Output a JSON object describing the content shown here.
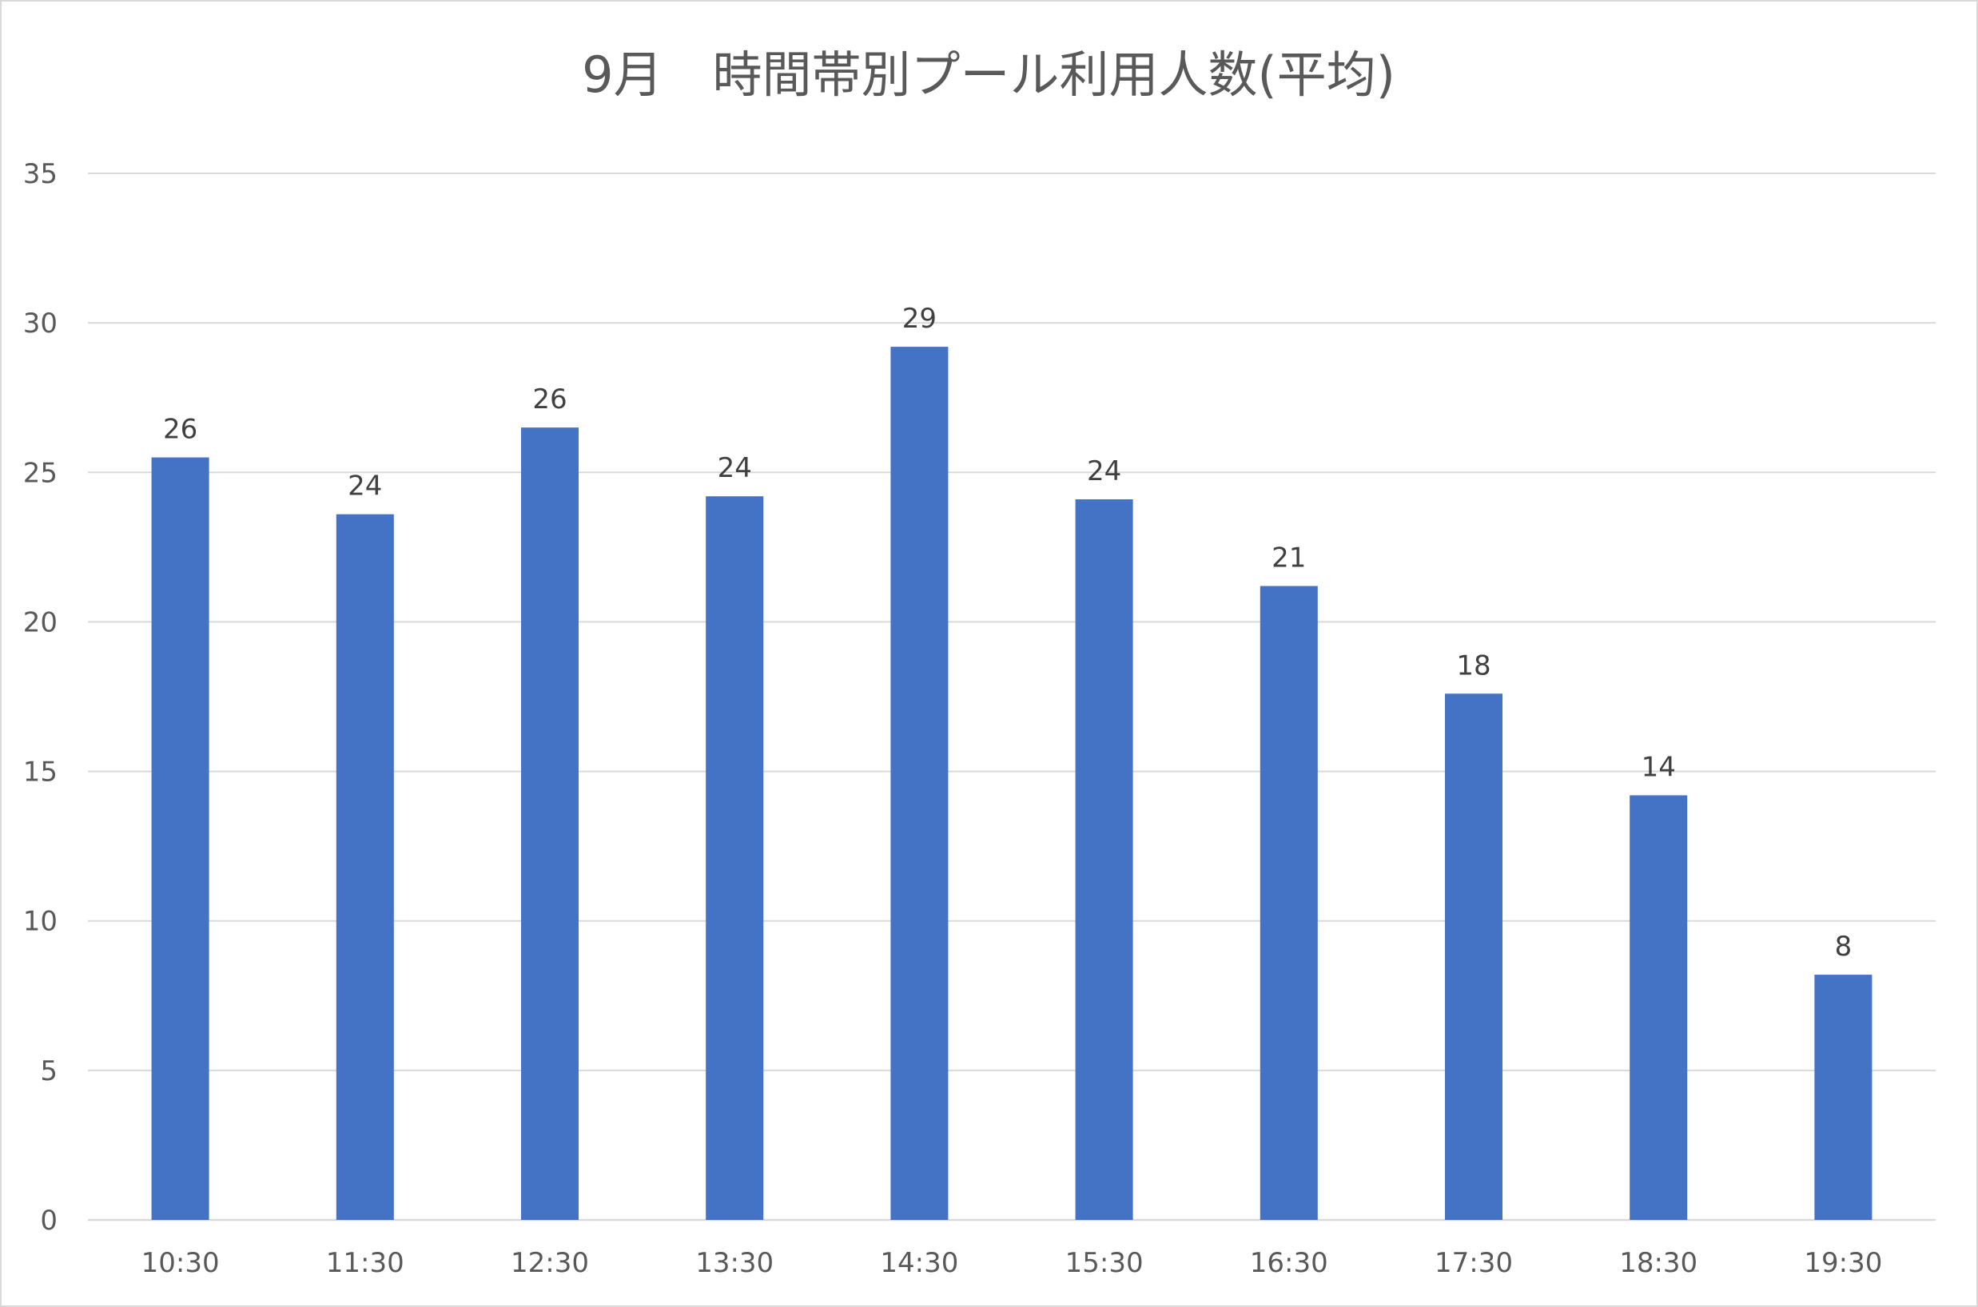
{
  "chart_data": {
    "type": "bar",
    "title": "9月　時間帯別プール利用人数(平均)",
    "xlabel": "",
    "ylabel": "",
    "categories": [
      "10:30",
      "11:30",
      "12:30",
      "13:30",
      "14:30",
      "15:30",
      "16:30",
      "17:30",
      "18:30",
      "19:30"
    ],
    "values": [
      25.5,
      23.6,
      26.5,
      24.2,
      29.2,
      24.1,
      21.2,
      17.6,
      14.2,
      8.2
    ],
    "data_labels": [
      "26",
      "24",
      "26",
      "24",
      "29",
      "24",
      "21",
      "18",
      "14",
      "8"
    ],
    "ylim": [
      0,
      35
    ],
    "yticks": [
      "0",
      "5",
      "10",
      "15",
      "20",
      "25",
      "30",
      "35"
    ],
    "grid": true,
    "legend": "none",
    "bar_color": "#4472C4"
  }
}
